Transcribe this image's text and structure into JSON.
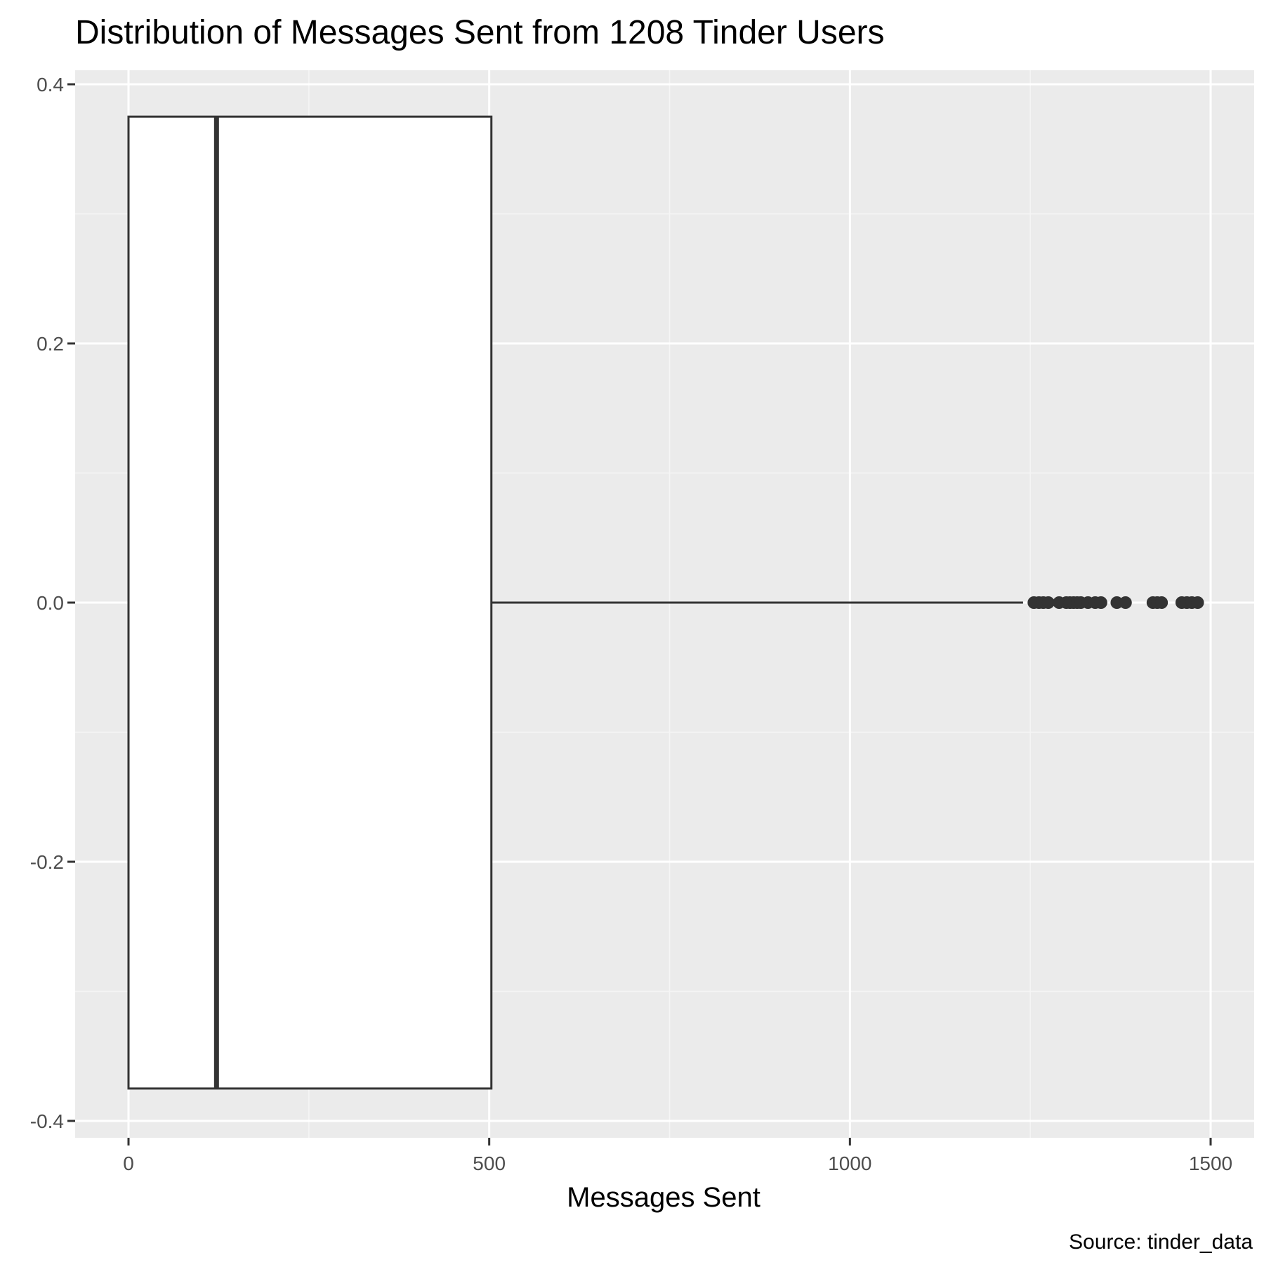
{
  "chart_data": {
    "type": "boxplot",
    "title": "Distribution of Messages Sent from 1208 Tinder Users",
    "xlabel": "Messages Sent",
    "ylabel": "",
    "caption": "Source: tinder_data",
    "xlim": [
      -74,
      1500
    ],
    "ylim": [
      -0.4,
      0.4
    ],
    "x_ticks": [
      0,
      500,
      1000,
      1500
    ],
    "y_ticks": [
      0.4,
      0.2,
      0.0,
      -0.2,
      -0.4
    ],
    "y_tick_labels": [
      "0.4",
      "0.2",
      "0.0",
      "-0.2",
      "-0.4"
    ],
    "grid": true,
    "box": {
      "min": 0,
      "q1": 0,
      "median": 122,
      "q3": 503,
      "whisker_high": 1240,
      "y_low": -0.375,
      "y_high": 0.375
    },
    "outliers": [
      1255,
      1262,
      1268,
      1275,
      1290,
      1300,
      1305,
      1310,
      1315,
      1320,
      1330,
      1340,
      1348,
      1370,
      1382,
      1420,
      1426,
      1432,
      1460,
      1467,
      1474,
      1482
    ],
    "colors": {
      "panel_bg": "#ebebeb",
      "grid_major": "#ffffff",
      "grid_minor": "#f5f5f5",
      "box_fill": "#ffffff",
      "box_stroke": "#333333",
      "outlier": "#333333",
      "axis_tick": "#333333"
    }
  }
}
